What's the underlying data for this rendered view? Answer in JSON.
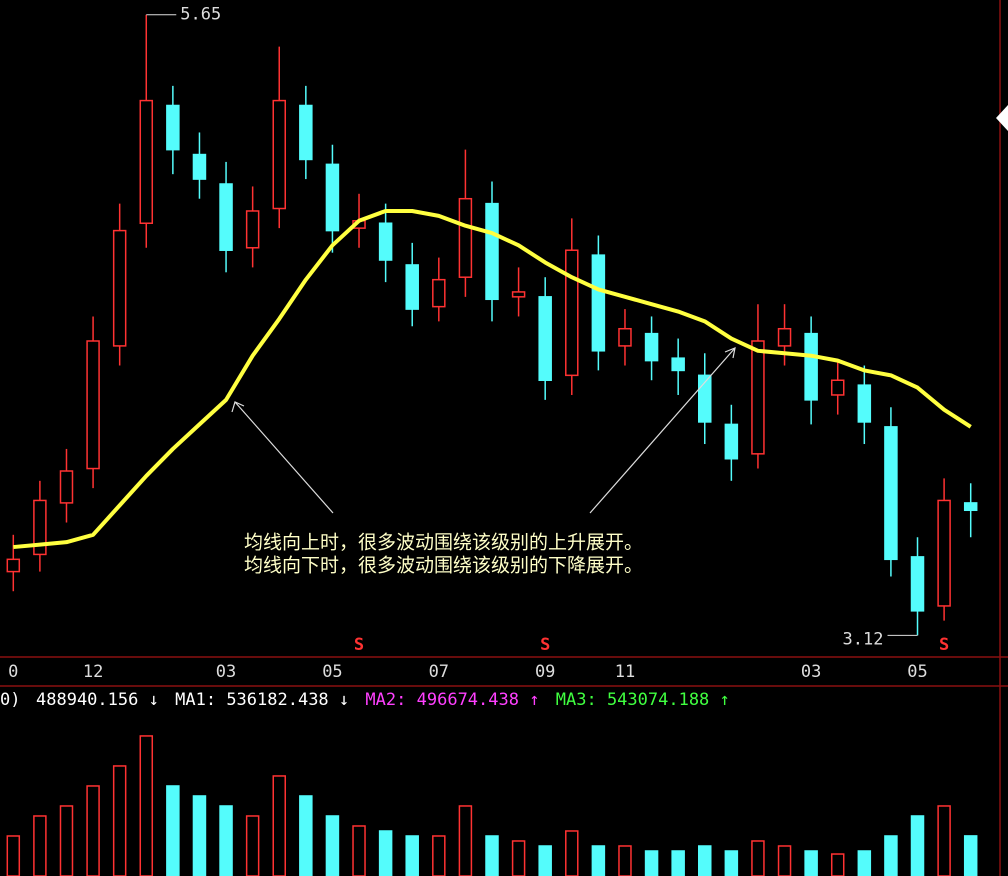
{
  "chart_data": {
    "type": "candlestick",
    "categories": [
      "0",
      null,
      null,
      "12",
      null,
      null,
      null,
      null,
      "03",
      null,
      null,
      null,
      "05",
      null,
      null,
      null,
      "07",
      null,
      null,
      null,
      "09",
      null,
      null,
      "11",
      null,
      null,
      null,
      null,
      null,
      null,
      "03",
      null,
      null,
      null,
      "05",
      null,
      null
    ],
    "open": [
      3.38,
      3.45,
      3.66,
      3.8,
      4.3,
      4.8,
      5.28,
      5.08,
      4.96,
      4.7,
      4.86,
      5.28,
      5.04,
      4.78,
      4.8,
      4.63,
      4.46,
      4.58,
      4.88,
      4.5,
      4.5,
      4.18,
      4.67,
      4.3,
      4.35,
      4.25,
      4.18,
      3.98,
      3.86,
      4.3,
      4.35,
      4.1,
      4.14,
      3.97,
      3.44,
      3.24,
      3.66
    ],
    "high": [
      3.53,
      3.75,
      3.88,
      4.42,
      4.88,
      5.65,
      5.36,
      5.17,
      5.05,
      4.95,
      5.52,
      5.36,
      5.12,
      4.92,
      4.88,
      4.72,
      4.66,
      5.1,
      4.97,
      4.62,
      4.58,
      4.82,
      4.75,
      4.45,
      4.42,
      4.33,
      4.27,
      4.06,
      4.47,
      4.47,
      4.42,
      4.24,
      4.22,
      4.05,
      3.52,
      3.76,
      3.74
    ],
    "low": [
      3.3,
      3.38,
      3.58,
      3.72,
      4.22,
      4.7,
      5.0,
      4.9,
      4.6,
      4.62,
      4.78,
      4.98,
      4.68,
      4.7,
      4.56,
      4.38,
      4.4,
      4.5,
      4.4,
      4.42,
      4.08,
      4.1,
      4.2,
      4.22,
      4.16,
      4.1,
      3.9,
      3.75,
      3.8,
      4.22,
      3.98,
      4.02,
      3.9,
      3.36,
      3.12,
      3.18,
      3.52
    ],
    "close": [
      3.43,
      3.67,
      3.79,
      4.32,
      4.77,
      5.3,
      5.1,
      4.98,
      4.69,
      4.85,
      5.3,
      5.06,
      4.77,
      4.81,
      4.65,
      4.45,
      4.57,
      4.9,
      4.49,
      4.52,
      4.16,
      4.69,
      4.28,
      4.37,
      4.24,
      4.2,
      3.99,
      3.84,
      4.32,
      4.37,
      4.08,
      4.16,
      3.99,
      3.43,
      3.22,
      3.67,
      3.63
    ],
    "ylim": [
      3.04,
      5.71
    ],
    "up_color": "#ff3232",
    "down_color": "#54fcfc",
    "ma": {
      "color": "#ffff40",
      "values": [
        3.48,
        3.49,
        3.5,
        3.53,
        3.65,
        3.77,
        3.88,
        3.98,
        4.08,
        4.26,
        4.41,
        4.57,
        4.71,
        4.81,
        4.85,
        4.85,
        4.83,
        4.79,
        4.76,
        4.71,
        4.64,
        4.58,
        4.53,
        4.5,
        4.47,
        4.44,
        4.4,
        4.33,
        4.28,
        4.27,
        4.26,
        4.24,
        4.2,
        4.18,
        4.13,
        4.04,
        3.97
      ]
    },
    "signals": [
      null,
      null,
      null,
      null,
      null,
      null,
      null,
      null,
      null,
      null,
      null,
      null,
      null,
      "S",
      null,
      null,
      null,
      null,
      null,
      null,
      "S",
      null,
      null,
      null,
      null,
      null,
      null,
      null,
      null,
      null,
      null,
      null,
      null,
      null,
      null,
      "S",
      null
    ],
    "notes": [
      "均线向上时，很多波动围绕该级别的上升展开。",
      "均线向下时，很多波动围绕该级别的下降展开。"
    ],
    "volume": {
      "label": "0)",
      "trend": "↓",
      "ylim": [
        0,
        2000000
      ],
      "values": [
        488000,
        732000,
        854000,
        1098000,
        1342000,
        1708000,
        1098000,
        976000,
        854000,
        732000,
        1220000,
        976000,
        732000,
        610000,
        549000,
        488000,
        488000,
        854000,
        488000,
        427000,
        366000,
        549000,
        366000,
        366000,
        305000,
        305000,
        366000,
        305000,
        427000,
        366000,
        305000,
        268000,
        305000,
        488000,
        732000,
        854000,
        488940.156
      ],
      "mas": [
        {
          "name": "MA1:",
          "value": 536182.438,
          "trend": "↓",
          "color": "#ffffff"
        },
        {
          "name": "MA2:",
          "value": 496674.438,
          "trend": "↑",
          "color": "#ff40ff"
        },
        {
          "name": "MA3:",
          "value": 543074.188,
          "trend": "↑",
          "color": "#40ff40"
        }
      ]
    }
  }
}
